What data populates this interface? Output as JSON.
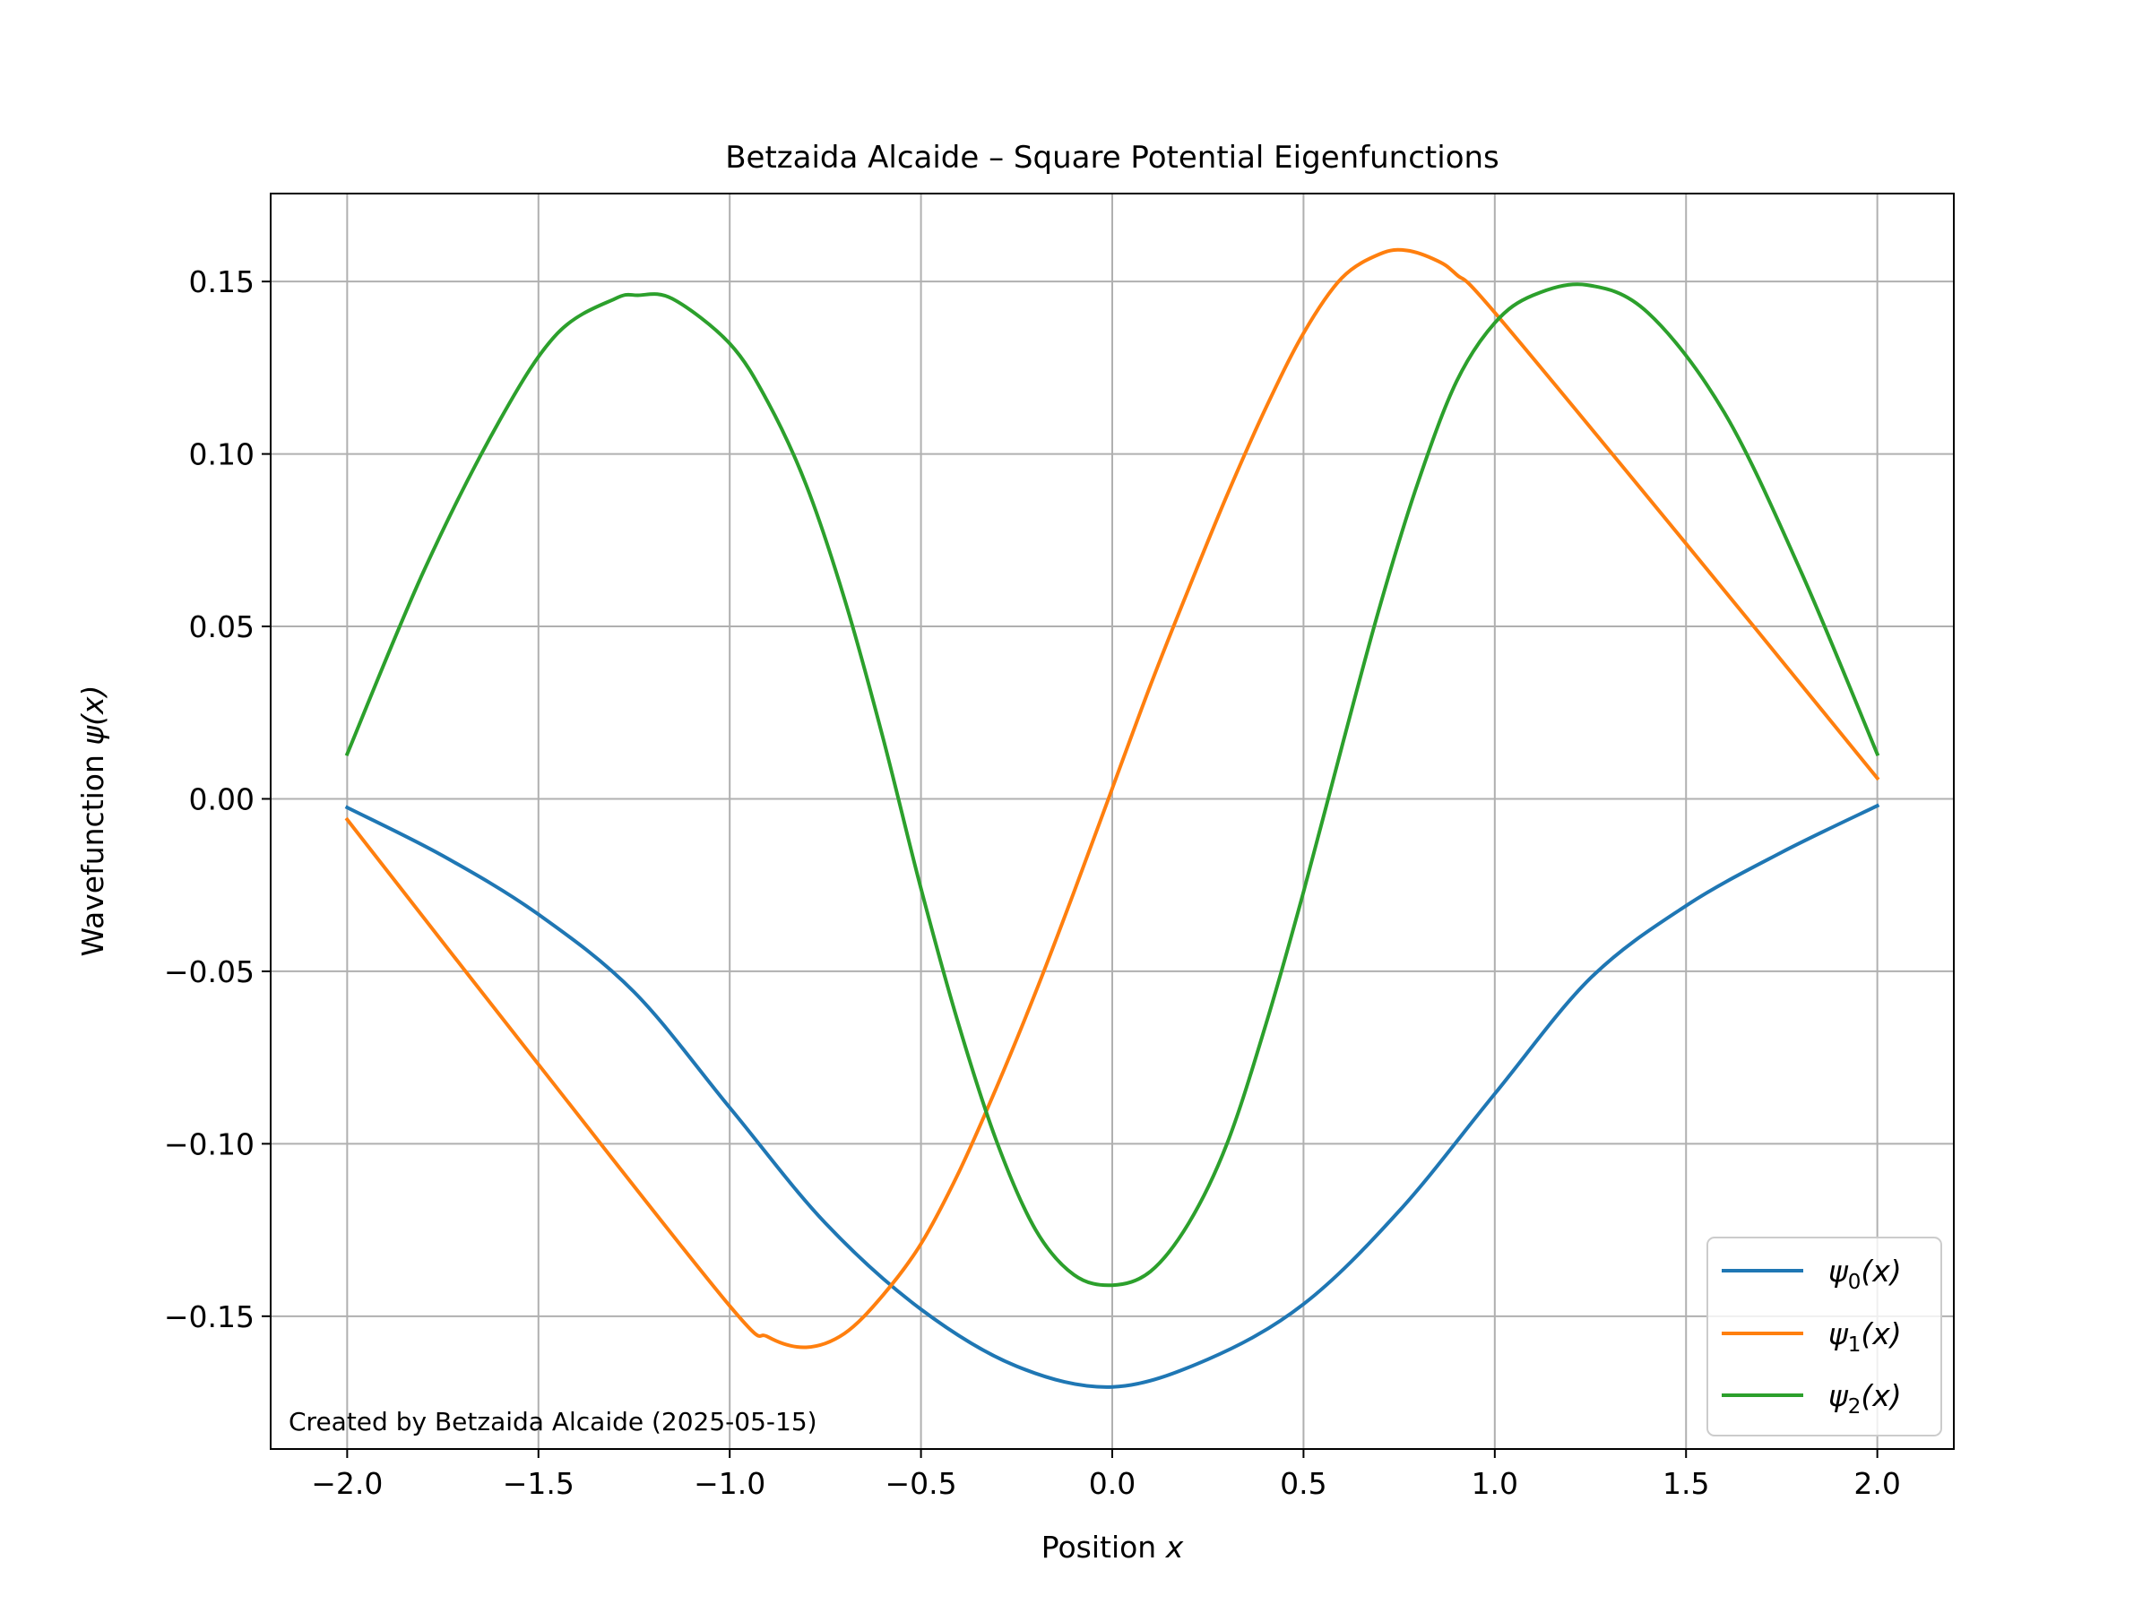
{
  "chart_data": {
    "type": "line",
    "title": "Betzaida Alcaide – Square Potential Eigenfunctions",
    "xlabel": "Position",
    "xlabel_var": "x",
    "ylabel": "Wavefunction",
    "ylabel_var": "ψ(x)",
    "xlim": [
      -2.2,
      2.2
    ],
    "ylim": [
      -0.1885,
      0.1755
    ],
    "xticks": [
      -2.0,
      -1.5,
      -1.0,
      -0.5,
      0.0,
      0.5,
      1.0,
      1.5,
      2.0
    ],
    "xtick_labels": [
      "−2.0",
      "−1.5",
      "−1.0",
      "−0.5",
      "0.0",
      "0.5",
      "1.0",
      "1.5",
      "2.0"
    ],
    "yticks": [
      0.15,
      0.1,
      0.05,
      0.0,
      -0.05,
      -0.1,
      -0.15
    ],
    "ytick_labels": [
      "0.15",
      "0.10",
      "0.05",
      "0.00",
      "−0.05",
      "−0.10",
      "−0.15"
    ],
    "grid": true,
    "legend_position": "lower right",
    "annotation": "Created by Betzaida Alcaide (2025-05-15)",
    "series": [
      {
        "name": "ψ₀(x)",
        "symbol": "ψ",
        "subscript": "0",
        "arg": "(x)",
        "color": "#1f77b4",
        "x": [
          -2.0,
          -1.75,
          -1.5,
          -1.25,
          -1.0,
          -0.75,
          -0.5,
          -0.25,
          0.0,
          0.25,
          0.5,
          0.75,
          1.0,
          1.25,
          1.5,
          1.75,
          2.0
        ],
        "y": [
          -0.0025,
          -0.0165,
          -0.0335,
          -0.056,
          -0.0895,
          -0.123,
          -0.148,
          -0.1645,
          -0.1705,
          -0.1625,
          -0.1465,
          -0.1195,
          -0.0855,
          -0.052,
          -0.031,
          -0.0155,
          -0.002
        ]
      },
      {
        "name": "ψ₁(x)",
        "symbol": "ψ",
        "subscript": "1",
        "arg": "(x)",
        "color": "#ff7f0e",
        "x": [
          -2.0,
          -1.5,
          -1.0,
          -0.9,
          -0.8,
          -0.7,
          -0.6,
          -0.5,
          -0.4,
          -0.3,
          -0.2,
          -0.1,
          0.0,
          0.1,
          0.2,
          0.3,
          0.4,
          0.5,
          0.6,
          0.7,
          0.77,
          0.85,
          0.9,
          1.0,
          1.5,
          2.0
        ],
        "y": [
          -0.006,
          -0.077,
          -0.147,
          -0.156,
          -0.159,
          -0.155,
          -0.144,
          -0.129,
          -0.108,
          -0.083,
          -0.056,
          -0.027,
          0.003,
          0.033,
          0.061,
          0.088,
          0.113,
          0.135,
          0.151,
          0.158,
          0.159,
          0.156,
          0.152,
          0.141,
          0.074,
          0.006
        ]
      },
      {
        "name": "ψ₂(x)",
        "symbol": "ψ",
        "subscript": "2",
        "arg": "(x)",
        "color": "#2ca02c",
        "x": [
          -2.0,
          -1.8,
          -1.6,
          -1.45,
          -1.3,
          -1.24,
          -1.15,
          -1.0,
          -0.9,
          -0.8,
          -0.7,
          -0.6,
          -0.5,
          -0.4,
          -0.3,
          -0.2,
          -0.1,
          0.0,
          0.1,
          0.2,
          0.3,
          0.4,
          0.5,
          0.6,
          0.7,
          0.8,
          0.9,
          1.0,
          1.1,
          1.24,
          1.4,
          1.6,
          1.8,
          2.0
        ],
        "y": [
          0.013,
          0.066,
          0.11,
          0.135,
          0.145,
          0.146,
          0.145,
          0.132,
          0.115,
          0.091,
          0.058,
          0.018,
          -0.026,
          -0.066,
          -0.1,
          -0.125,
          -0.138,
          -0.141,
          -0.137,
          -0.123,
          -0.1,
          -0.066,
          -0.027,
          0.015,
          0.056,
          0.092,
          0.121,
          0.138,
          0.146,
          0.149,
          0.141,
          0.112,
          0.066,
          0.013
        ]
      }
    ]
  }
}
